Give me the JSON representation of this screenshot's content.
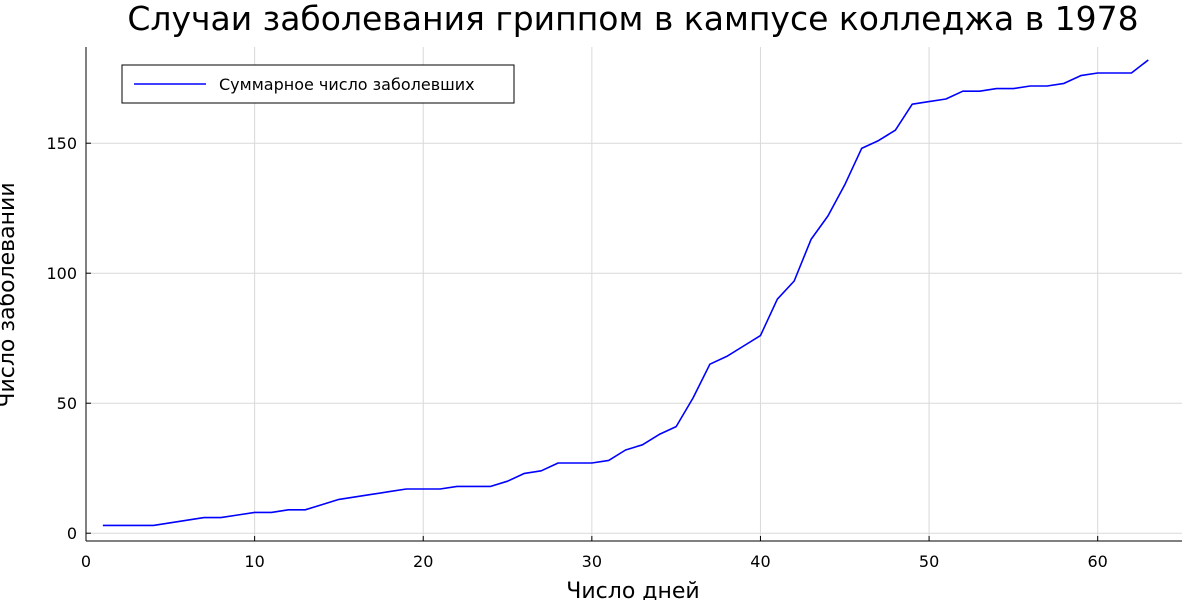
{
  "chart_data": {
    "type": "line",
    "title": "Случаи заболевания гриппом в кампусе колледжа в 1978",
    "xlabel": "Число дней",
    "ylabel": "Число заболевании",
    "xlim": [
      0,
      65
    ],
    "ylim": [
      -3,
      187
    ],
    "xticks": [
      0,
      10,
      20,
      30,
      40,
      50,
      60
    ],
    "yticks": [
      0,
      50,
      100,
      150
    ],
    "grid": true,
    "legend_position": "top-left",
    "series": [
      {
        "name": "Суммарное число заболевших",
        "color": "#0000ff",
        "x": [
          1,
          2,
          3,
          4,
          5,
          6,
          7,
          8,
          9,
          10,
          11,
          12,
          13,
          14,
          15,
          16,
          17,
          18,
          19,
          20,
          21,
          22,
          23,
          24,
          25,
          26,
          27,
          28,
          29,
          30,
          31,
          32,
          33,
          34,
          35,
          36,
          37,
          38,
          39,
          40,
          41,
          42,
          43,
          44,
          45,
          46,
          47,
          48,
          49,
          50,
          51,
          52,
          53,
          54,
          55,
          56,
          57,
          58,
          59,
          60,
          61,
          62,
          63
        ],
        "y": [
          3,
          3,
          3,
          3,
          4,
          5,
          6,
          6,
          7,
          8,
          8,
          9,
          9,
          11,
          13,
          14,
          15,
          16,
          17,
          17,
          17,
          18,
          18,
          18,
          20,
          23,
          24,
          27,
          27,
          27,
          28,
          32,
          34,
          38,
          41,
          52,
          65,
          68,
          72,
          76,
          90,
          97,
          113,
          122,
          134,
          148,
          151,
          155,
          165,
          166,
          167,
          170,
          170,
          171,
          171,
          172,
          172,
          173,
          176,
          177,
          177,
          177,
          182
        ]
      }
    ]
  }
}
